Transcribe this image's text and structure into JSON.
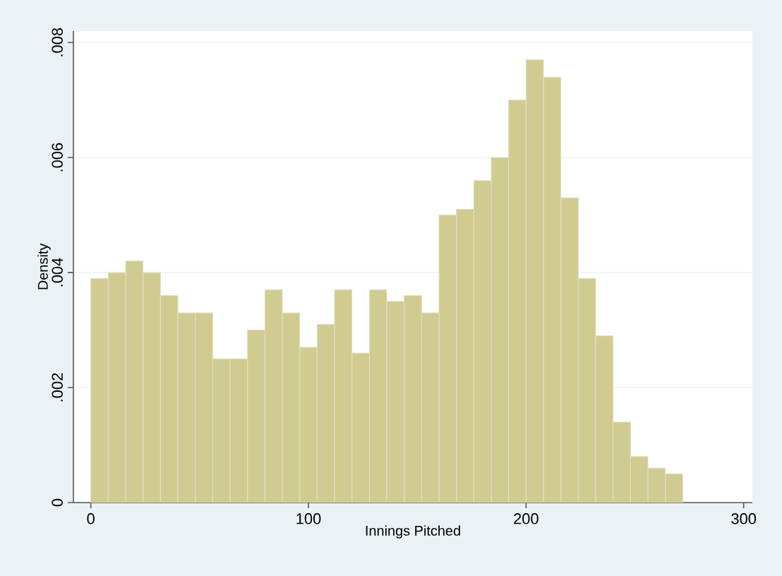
{
  "chart_data": {
    "type": "histogram",
    "xlabel": "Innings Pitched",
    "ylabel": "Density",
    "bins": [
      0,
      8,
      16,
      24,
      32,
      40,
      48,
      56,
      64,
      72,
      80,
      88,
      96,
      104,
      112,
      120,
      128,
      136,
      144,
      152,
      160,
      168,
      176,
      184,
      192,
      200,
      208,
      216,
      224,
      232,
      240,
      248,
      256,
      264,
      272
    ],
    "values": [
      0.0039,
      0.004,
      0.0042,
      0.004,
      0.0036,
      0.0033,
      0.0033,
      0.0025,
      0.0025,
      0.003,
      0.0037,
      0.0033,
      0.0027,
      0.0031,
      0.0037,
      0.0026,
      0.0037,
      0.0035,
      0.0036,
      0.0033,
      0.005,
      0.0051,
      0.0056,
      0.006,
      0.007,
      0.0077,
      0.0074,
      0.0053,
      0.0039,
      0.0029,
      0.0014,
      0.0008,
      0.0006,
      0.0005
    ],
    "color": "#d0cb91",
    "xlim": [
      -8,
      304
    ],
    "ylim": [
      0,
      0.0082
    ],
    "xticks": [
      0,
      100,
      200,
      300
    ],
    "yticks": [
      0,
      {
        "value": 0.002,
        "label": ".002"
      },
      {
        "value": 0.004,
        "label": ".004"
      },
      {
        "value": 0.006,
        "label": ".006"
      },
      {
        "value": 0.008,
        "label": ".008"
      }
    ],
    "grid": "y"
  }
}
